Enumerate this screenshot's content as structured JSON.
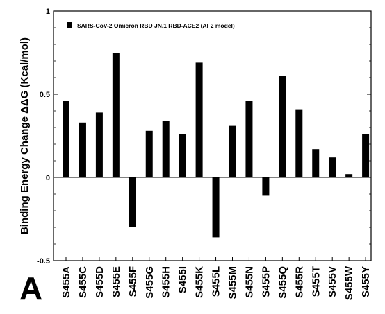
{
  "panel_label": "A",
  "chart_data": {
    "type": "bar",
    "title": "",
    "ylabel": "Binding  Energy Change ΔΔG (Kcal/mol)",
    "xlabel": "",
    "ylim": [
      -0.5,
      1
    ],
    "yticks": [
      -0.5,
      0,
      0.5,
      1
    ],
    "ytick_labels": [
      "-0.5",
      "0",
      "0.5",
      "1"
    ],
    "grid": false,
    "legend_position": "top-left",
    "bar_color": "#000000",
    "categories": [
      "S455A",
      "S455C",
      "S455D",
      "S455E",
      "S455F",
      "S455G",
      "S455H",
      "S455I",
      "S455K",
      "S455L",
      "S455M",
      "S455N",
      "S455P",
      "S455Q",
      "S455R",
      "S455T",
      "S455V",
      "S455W",
      "S455Y"
    ],
    "series": [
      {
        "name": "SARS-CoV-2 Omicron RBD JN.1 RBD-ACE2 (AF2 model)",
        "values": [
          0.46,
          0.33,
          0.39,
          0.75,
          -0.3,
          0.28,
          0.34,
          0.26,
          0.69,
          -0.36,
          0.31,
          0.46,
          -0.11,
          0.61,
          0.41,
          0.17,
          0.12,
          0.02,
          0.26
        ]
      }
    ]
  }
}
